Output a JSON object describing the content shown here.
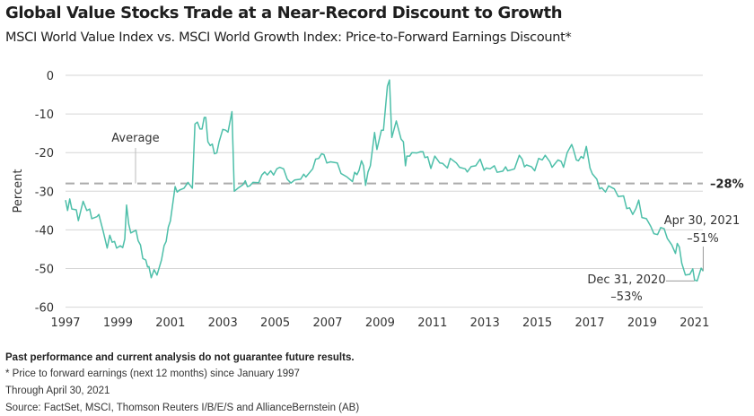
{
  "title": "Global Value Stocks Trade at a Near-Record Discount to Growth",
  "subtitle": "MSCI World Value Index vs. MSCI World Growth Index: Price-to-Forward Earnings Discount*",
  "footer": {
    "disclaimer": "Past performance and current analysis do not guarantee future results.",
    "footnote": "* Price to forward earnings (next 12 months) since January 1997",
    "through": "Through April 30, 2021",
    "source": "Source: FactSet, MSCI, Thomson Reuters I/B/E/S and AllianceBernstein (AB)"
  },
  "chart_data": {
    "type": "line",
    "xlabel": "",
    "ylabel": "Percent",
    "xlim": [
      1997,
      2021.33
    ],
    "ylim": [
      -60,
      0
    ],
    "x_ticks": [
      "1997",
      "1999",
      "2001",
      "2003",
      "2005",
      "2007",
      "2009",
      "2011",
      "2013",
      "2015",
      "2017",
      "2019",
      "2021"
    ],
    "y_ticks": [
      "0",
      "-10",
      "-20",
      "-30",
      "-40",
      "-50",
      "-60"
    ],
    "grid": "horizontal",
    "line_color": "#4dbfa9",
    "average": {
      "label": "Average",
      "value": -28,
      "value_label": "–28%",
      "color": "#aaaaaa"
    },
    "annotations": [
      {
        "date": "Apr 30, 2021",
        "value_label": "–51%",
        "x": 2021.33,
        "y": -51
      },
      {
        "date": "Dec 31, 2020",
        "value_label": "–53%",
        "x": 2021.0,
        "y": -53
      }
    ],
    "series": [
      {
        "x": [
          1997.0,
          1997.08,
          1997.16,
          1997.24,
          1997.41,
          1997.49,
          1997.67,
          1997.81,
          1997.92,
          1998.0,
          1998.2,
          1998.27,
          1998.44,
          1998.59,
          1998.69,
          1998.78,
          1998.87,
          1998.95,
          1999.09,
          1999.18,
          1999.26,
          1999.33,
          1999.41,
          1999.49,
          1999.69,
          1999.77,
          1999.86,
          1999.95,
          2000.06,
          2000.13,
          2000.18,
          2000.27,
          2000.38,
          2000.49,
          2000.66,
          2000.76,
          2000.84,
          2000.92,
          2001.0,
          2001.18,
          2001.26,
          2001.35,
          2001.52,
          2001.67,
          2001.84,
          2001.94,
          2002.03,
          2002.13,
          2002.21,
          2002.29,
          2002.35,
          2002.43,
          2002.52,
          2002.6,
          2002.68,
          2002.77,
          2002.86,
          2003.0,
          2003.11,
          2003.2,
          2003.35,
          2003.44,
          2003.58,
          2003.77,
          2003.86,
          2003.94,
          2004.03,
          2004.15,
          2004.37,
          2004.49,
          2004.6,
          2004.7,
          2004.83,
          2004.94,
          2005.06,
          2005.17,
          2005.32,
          2005.46,
          2005.6,
          2005.74,
          2005.97,
          2006.09,
          2006.17,
          2006.43,
          2006.54,
          2006.66,
          2006.77,
          2006.86,
          2006.97,
          2007.11,
          2007.37,
          2007.51,
          2007.74,
          2007.95,
          2008.03,
          2008.12,
          2008.2,
          2008.29,
          2008.37,
          2008.45,
          2008.54,
          2008.63,
          2008.79,
          2008.88,
          2009.05,
          2009.13,
          2009.28,
          2009.36,
          2009.45,
          2009.62,
          2009.8,
          2009.89,
          2009.97,
          2010.02,
          2010.13,
          2010.22,
          2010.41,
          2010.53,
          2010.64,
          2010.71,
          2010.82,
          2010.94,
          2011.09,
          2011.28,
          2011.39,
          2011.57,
          2011.68,
          2011.91,
          2012.03,
          2012.25,
          2012.33,
          2012.48,
          2012.65,
          2012.82,
          2012.97,
          2013.05,
          2013.2,
          2013.36,
          2013.47,
          2013.68,
          2013.79,
          2013.87,
          2014.04,
          2014.13,
          2014.31,
          2014.42,
          2014.51,
          2014.59,
          2014.78,
          2014.9,
          2015.05,
          2015.19,
          2015.3,
          2015.48,
          2015.56,
          2015.79,
          2015.91,
          2016.0,
          2016.14,
          2016.31,
          2016.37,
          2016.49,
          2016.57,
          2016.67,
          2016.76,
          2016.87,
          2017.01,
          2017.1,
          2017.27,
          2017.38,
          2017.46,
          2017.6,
          2017.72,
          2017.94,
          2018.09,
          2018.29,
          2018.41,
          2018.52,
          2018.64,
          2018.76,
          2018.87,
          2018.99,
          2019.16,
          2019.33,
          2019.45,
          2019.59,
          2019.71,
          2019.84,
          2019.96,
          2020.13,
          2020.27,
          2020.34,
          2020.42,
          2020.51,
          2020.65,
          2020.82,
          2020.93,
          2021.0,
          2021.1,
          2021.25,
          2021.33
        ],
        "y": [
          -32.3,
          -35,
          -32,
          -34.6,
          -34.8,
          -37.6,
          -32.6,
          -35,
          -34.6,
          -37.1,
          -36.6,
          -36,
          -40.4,
          -44.7,
          -41.4,
          -43.2,
          -43,
          -44.7,
          -44.1,
          -44.6,
          -42.4,
          -33.6,
          -38.5,
          -40.8,
          -40.1,
          -42.8,
          -43.9,
          -47.4,
          -47.8,
          -49.6,
          -49.5,
          -52.4,
          -50.3,
          -51.7,
          -47.8,
          -44.1,
          -43,
          -39.3,
          -37.7,
          -28.8,
          -30.2,
          -29.7,
          -29.2,
          -27.7,
          -29.2,
          -12.6,
          -12.1,
          -13.9,
          -13.9,
          -10.9,
          -10.9,
          -17.2,
          -18.2,
          -17.8,
          -20.3,
          -20.1,
          -17.2,
          -14,
          -14.2,
          -14.7,
          -9.4,
          -30,
          -29.2,
          -28.3,
          -27.3,
          -28.8,
          -28.6,
          -27.7,
          -27.8,
          -25.8,
          -25,
          -25.8,
          -24.7,
          -25.8,
          -24.2,
          -23.8,
          -24.2,
          -26.9,
          -27.9,
          -27.1,
          -26.9,
          -25.6,
          -26.3,
          -24.2,
          -21.7,
          -21.5,
          -20.3,
          -20.5,
          -22.7,
          -22.4,
          -22.7,
          -25.4,
          -26.3,
          -27.5,
          -25.1,
          -25.7,
          -24.6,
          -22.1,
          -23.4,
          -28.5,
          -25,
          -23.4,
          -14.8,
          -19.2,
          -14.2,
          -14.2,
          -2.8,
          -1.2,
          -16.1,
          -11.8,
          -16.5,
          -17.2,
          -23.4,
          -20.9,
          -20.9,
          -20,
          -20.1,
          -19.8,
          -19.8,
          -21.3,
          -21.1,
          -24.1,
          -20.9,
          -22.7,
          -22.8,
          -24,
          -21.5,
          -22.7,
          -23.8,
          -24.2,
          -25,
          -23.6,
          -23.4,
          -21.7,
          -24.6,
          -24,
          -24.2,
          -23.4,
          -25.1,
          -24.8,
          -23.7,
          -24.7,
          -24.4,
          -24.2,
          -20.7,
          -21.7,
          -23.7,
          -23.2,
          -23.7,
          -24.7,
          -21.5,
          -21.9,
          -20.7,
          -22.4,
          -23.8,
          -21.9,
          -22.3,
          -23.8,
          -20,
          -17.9,
          -19,
          -21.9,
          -22.1,
          -21,
          -21.5,
          -18.4,
          -24,
          -25.5,
          -26.9,
          -29.4,
          -29.1,
          -30.2,
          -28.6,
          -29.4,
          -31.4,
          -31.2,
          -34.5,
          -34.3,
          -36,
          -34.5,
          -32.3,
          -36.8,
          -37.1,
          -39.1,
          -41,
          -41.2,
          -39.4,
          -39.7,
          -42.2,
          -43.9,
          -46.1,
          -43.5,
          -44.5,
          -48.6,
          -51.7,
          -51.5,
          -50.1,
          -53,
          -53.2,
          -49.9,
          -50.7
        ]
      }
    ]
  }
}
